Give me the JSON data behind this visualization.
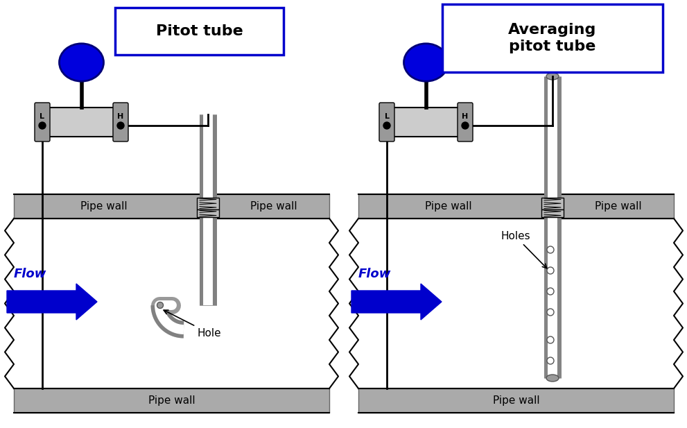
{
  "bg_color": "#ffffff",
  "pipe_wall_color": "#aaaaaa",
  "pipe_wall_edge": "#666666",
  "tube_color": "#999999",
  "tube_edge": "#555555",
  "fitting_color": "#bbbbbb",
  "dp_body_color": "#cccccc",
  "dp_cap_color": "#999999",
  "blue_ball_color": "#0000dd",
  "blue_ball_edge": "#000077",
  "blue_arrow_color": "#0000cc",
  "flow_text_color": "#0000cc",
  "black_color": "#000000",
  "wire_color": "#000000",
  "title1": "Pitot tube",
  "title2_line1": "Averaging",
  "title2_line2": "pitot tube",
  "pipe_wall_label": "Pipe wall",
  "flow_label": "Flow",
  "hole_label": "Hole",
  "holes_label": "Holes",
  "title_box_edge": "#0000cc",
  "fig_width": 9.91,
  "fig_height": 6.17,
  "dpi": 100
}
